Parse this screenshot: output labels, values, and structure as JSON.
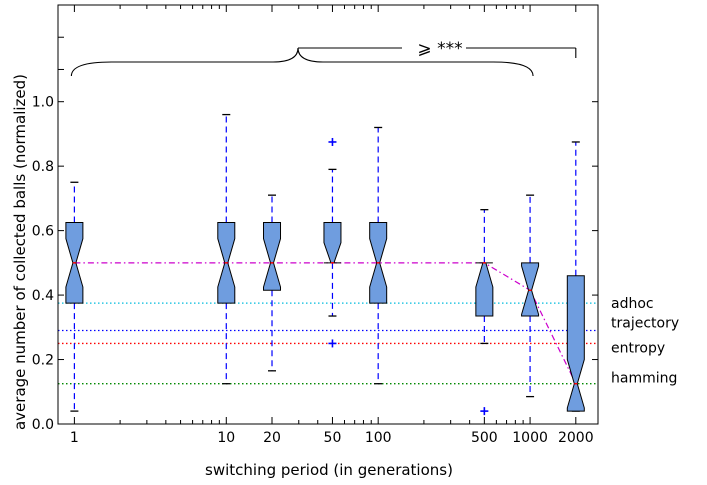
{
  "chart_data": {
    "type": "boxplot",
    "xlabel": "switching period (in generations)",
    "ylabel": "average number of collected balls (normalized)",
    "x_scale": "log",
    "xlim": [
      0.78,
      2800
    ],
    "ylim": [
      0.0,
      1.3
    ],
    "x_ticks": [
      1,
      10,
      20,
      50,
      100,
      500,
      1000,
      2000
    ],
    "x_tick_labels": [
      "1",
      "10",
      "20",
      "50",
      "100",
      "500",
      "1000",
      "2000"
    ],
    "y_ticks": [
      0.0,
      0.2,
      0.4,
      0.6,
      0.8,
      1.0
    ],
    "y_tick_labels": [
      "0.0",
      "0.2",
      "0.4",
      "0.6",
      "0.8",
      "1.0"
    ],
    "grid": false,
    "box_color": "#6f9ddf",
    "whisker_color": "#0000ff",
    "median_color": "#ff0000",
    "boxes": [
      {
        "x": 1,
        "whisker_low": 0.04,
        "q1": 0.375,
        "median": 0.5,
        "q3": 0.625,
        "whisker_high": 0.75,
        "outliers": []
      },
      {
        "x": 10,
        "whisker_low": 0.125,
        "q1": 0.375,
        "median": 0.5,
        "q3": 0.625,
        "whisker_high": 0.96,
        "outliers": []
      },
      {
        "x": 20,
        "whisker_low": 0.165,
        "q1": 0.415,
        "median": 0.5,
        "q3": 0.625,
        "whisker_high": 0.71,
        "outliers": []
      },
      {
        "x": 50,
        "whisker_low": 0.335,
        "q1": 0.5,
        "median": 0.5,
        "q3": 0.625,
        "whisker_high": 0.79,
        "outliers": [
          0.25,
          0.875
        ]
      },
      {
        "x": 100,
        "whisker_low": 0.125,
        "q1": 0.375,
        "median": 0.5,
        "q3": 0.625,
        "whisker_high": 0.92,
        "outliers": []
      },
      {
        "x": 500,
        "whisker_low": 0.25,
        "q1": 0.335,
        "median": 0.5,
        "q3": 0.5,
        "whisker_high": 0.665,
        "outliers": [
          0.04
        ]
      },
      {
        "x": 1000,
        "whisker_low": 0.085,
        "q1": 0.335,
        "median": 0.415,
        "q3": 0.5,
        "whisker_high": 0.71,
        "outliers": []
      },
      {
        "x": 2000,
        "whisker_low": 0.04,
        "q1": 0.04,
        "median": 0.125,
        "q3": 0.46,
        "whisker_high": 0.875,
        "outliers": []
      }
    ],
    "median_trend": {
      "color": "#cc00cc",
      "x": [
        1,
        500,
        1000,
        2000
      ],
      "y": [
        0.5,
        0.5,
        0.415,
        0.125
      ]
    },
    "reference_lines": [
      {
        "name": "adhoc",
        "y": 0.375,
        "color": "#00bbdd"
      },
      {
        "name": "trajectory",
        "y": 0.29,
        "color": "#0000ff"
      },
      {
        "name": "entropy",
        "y": 0.25,
        "color": "#ff0000"
      },
      {
        "name": "hamming",
        "y": 0.125,
        "color": "#008800"
      }
    ],
    "annotation": {
      "text": "⩾ ***",
      "brace_from": 1,
      "brace_to": 1000,
      "compare_to": 2000
    }
  }
}
